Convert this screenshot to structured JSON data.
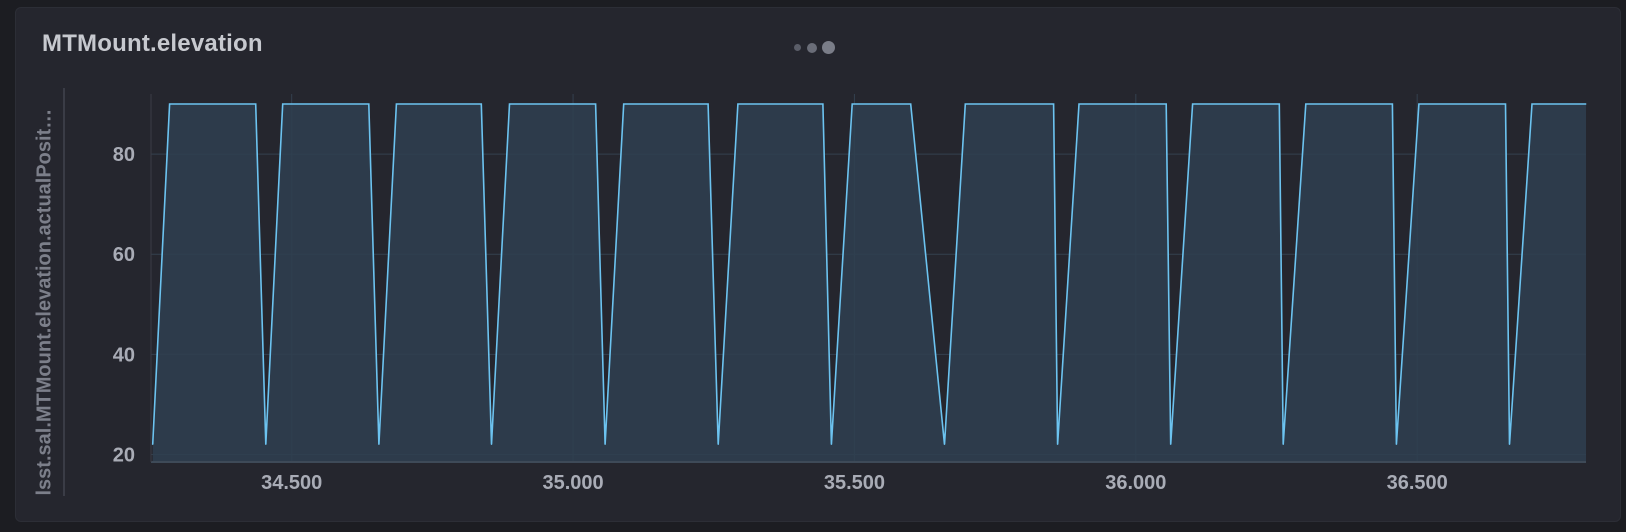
{
  "panel": {
    "title": "MTMount.elevation",
    "handle_icon": "ellipsis-drag-icon"
  },
  "colors": {
    "background": "#25262e",
    "line": "#6cc3f0",
    "fill": "#2f4050",
    "grid": "#34404e",
    "tick_text": "#a9acb6"
  },
  "chart_data": {
    "type": "area",
    "title": "MTMount.elevation",
    "xlabel": "",
    "ylabel": "lsst.sal.MTMount.elevation.actualPosit…",
    "xlim": [
      34.25,
      36.8
    ],
    "ylim": [
      18.5,
      92
    ],
    "x_ticks": [
      34.5,
      35.0,
      35.5,
      36.0,
      36.5
    ],
    "x_tick_labels": [
      "34.500",
      "35.000",
      "35.500",
      "36.000",
      "36.500"
    ],
    "y_ticks": [
      20,
      40,
      60,
      80
    ],
    "y_tick_labels": [
      "20",
      "40",
      "60",
      "80"
    ],
    "grid": true,
    "series": [
      {
        "x": [
          34.253,
          34.283,
          34.436,
          34.454,
          34.484,
          34.637,
          34.655,
          34.686,
          34.837,
          34.855,
          34.887,
          35.04,
          35.057,
          35.09,
          35.24,
          35.258,
          35.293,
          35.444,
          35.459,
          35.496,
          35.6,
          35.66,
          35.697,
          35.854,
          35.861,
          35.899,
          36.054,
          36.062,
          36.101,
          36.255,
          36.262,
          36.302,
          36.456,
          36.463,
          36.503,
          36.657,
          36.664,
          36.704,
          36.8
        ],
        "y": [
          22,
          90,
          90,
          22,
          90,
          90,
          22,
          90,
          90,
          22,
          90,
          90,
          22,
          90,
          90,
          22,
          90,
          90,
          22,
          90,
          90,
          22,
          90,
          90,
          22,
          90,
          90,
          22,
          90,
          90,
          22,
          90,
          90,
          22,
          90,
          90,
          22,
          90,
          90
        ]
      }
    ]
  }
}
